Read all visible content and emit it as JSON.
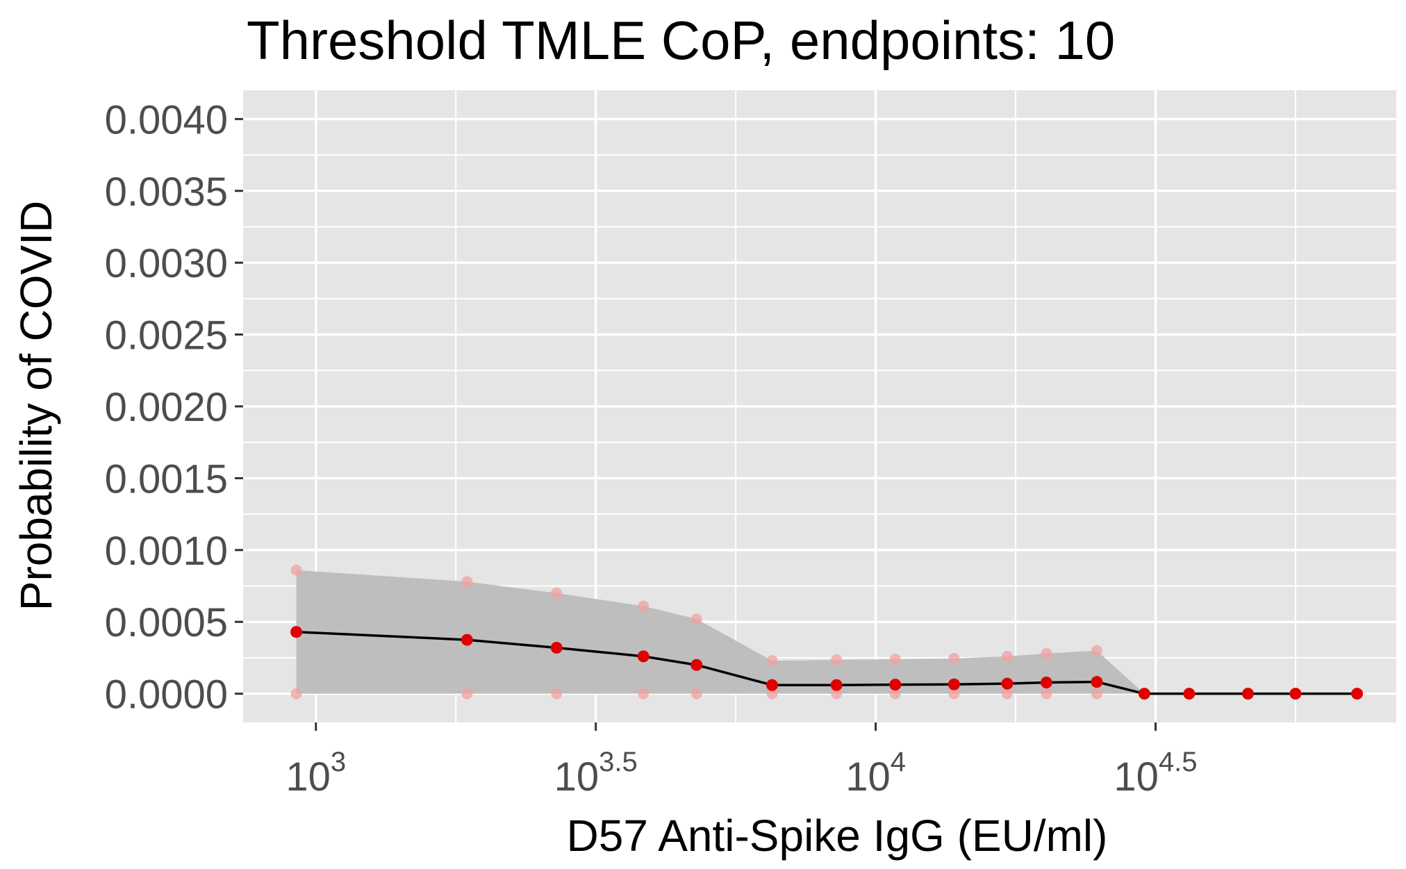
{
  "chart_data": {
    "type": "line",
    "title": "Threshold TMLE CoP, endpoints: 10",
    "xlabel": "D57 Anti-Spike IgG (EU/ml)",
    "ylabel": "Probability of COVID",
    "x_scale": "log10",
    "xlim_log10": [
      2.87,
      4.93
    ],
    "ylim": [
      -0.0002,
      0.0042
    ],
    "x_ticks": [
      {
        "base": "10",
        "exp": "3",
        "log10": 3.0
      },
      {
        "base": "10",
        "exp": "3.5",
        "log10": 3.5
      },
      {
        "base": "10",
        "exp": "4",
        "log10": 4.0
      },
      {
        "base": "10",
        "exp": "4.5",
        "log10": 4.5
      }
    ],
    "y_ticks": [
      "0.0000",
      "0.0005",
      "0.0010",
      "0.0015",
      "0.0020",
      "0.0025",
      "0.0030",
      "0.0035",
      "0.0040"
    ],
    "y_tick_values": [
      0.0,
      0.0005,
      0.001,
      0.0015,
      0.002,
      0.0025,
      0.003,
      0.0035,
      0.004
    ],
    "grid": true,
    "colors": {
      "panel": "#e5e5e5",
      "grid": "#ffffff",
      "band": "#bebebe",
      "line": "#000000",
      "estimate_point": "#e00000",
      "ci_point": "#f2a0a0"
    },
    "series": [
      {
        "log10_x": [
          2.965,
          3.27,
          3.43,
          3.585,
          3.68,
          3.815,
          3.93,
          4.035,
          4.14,
          4.235,
          4.305,
          4.395,
          4.48,
          4.56,
          4.665,
          4.75,
          4.86
        ],
        "estimate": [
          0.00043,
          0.000375,
          0.00032,
          0.00026,
          0.0002,
          6e-05,
          6e-05,
          6.3e-05,
          6.5e-05,
          7e-05,
          7.8e-05,
          8.2e-05,
          0.0,
          0.0,
          0.0,
          0.0,
          0.0
        ],
        "ci_upper": [
          0.00086,
          0.00078,
          0.0007,
          0.00061,
          0.00052,
          0.00023,
          0.000235,
          0.00024,
          0.000245,
          0.00026,
          0.00028,
          0.0003,
          0.0,
          0.0,
          0.0,
          0.0,
          0.0
        ],
        "ci_lower": [
          0.0,
          0.0,
          0.0,
          0.0,
          0.0,
          0.0,
          0.0,
          0.0,
          0.0,
          0.0,
          0.0,
          0.0,
          0.0,
          0.0,
          0.0,
          0.0,
          0.0
        ]
      }
    ]
  }
}
